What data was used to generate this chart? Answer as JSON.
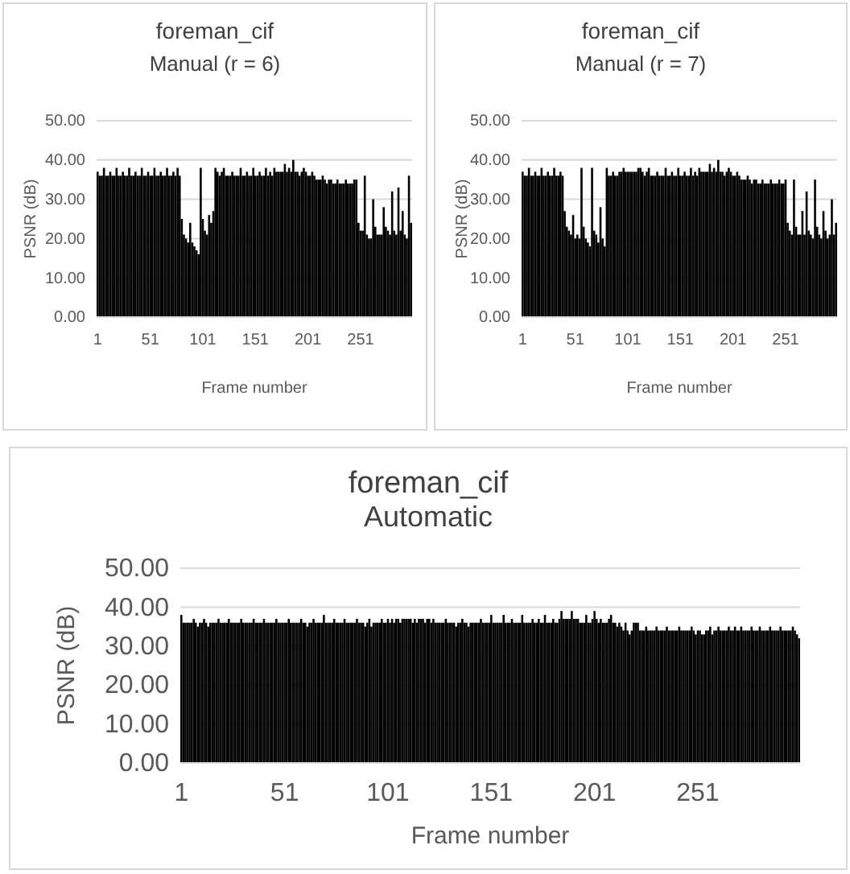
{
  "chart_data": [
    {
      "type": "bar",
      "title": "foreman_cif",
      "subtitle": "Manual (r = 6)",
      "xlabel": "Frame number",
      "ylabel": "PSNR (dB)",
      "color": "#000000",
      "grid": "y",
      "xlim": [
        0,
        300
      ],
      "xticks": [
        1,
        51,
        101,
        151,
        201,
        251
      ],
      "ylim": [
        0,
        50
      ],
      "yticks": [
        {
          "value": 0,
          "label": "0.00"
        },
        {
          "value": 10,
          "label": "10.00"
        },
        {
          "value": 20,
          "label": "20.00"
        },
        {
          "value": 30,
          "label": "30.00"
        },
        {
          "value": 40,
          "label": "40.00"
        },
        {
          "value": 50,
          "label": "50.00"
        }
      ],
      "x": [
        1,
        3,
        5,
        7,
        9,
        11,
        13,
        15,
        17,
        19,
        21,
        23,
        25,
        27,
        29,
        31,
        33,
        35,
        37,
        39,
        41,
        43,
        45,
        47,
        49,
        51,
        53,
        55,
        57,
        59,
        61,
        63,
        65,
        67,
        69,
        71,
        73,
        75,
        77,
        79,
        81,
        83,
        85,
        87,
        89,
        91,
        93,
        95,
        97,
        99,
        101,
        103,
        105,
        107,
        109,
        111,
        113,
        115,
        117,
        119,
        121,
        123,
        125,
        127,
        129,
        131,
        133,
        135,
        137,
        139,
        141,
        143,
        145,
        147,
        149,
        151,
        153,
        155,
        157,
        159,
        161,
        163,
        165,
        167,
        169,
        171,
        173,
        175,
        177,
        179,
        181,
        183,
        185,
        187,
        189,
        191,
        193,
        195,
        197,
        199,
        201,
        203,
        205,
        207,
        209,
        211,
        213,
        215,
        217,
        219,
        221,
        223,
        225,
        227,
        229,
        231,
        233,
        235,
        237,
        239,
        241,
        243,
        245,
        247,
        249,
        251,
        253,
        255,
        257,
        259,
        261,
        263,
        265,
        267,
        269,
        271,
        273,
        275,
        277,
        279,
        281,
        283,
        285,
        287,
        289,
        291,
        293,
        295,
        297,
        299
      ],
      "values": [
        37,
        36,
        36,
        38,
        36,
        36,
        37,
        36,
        36,
        38,
        36,
        36,
        37,
        36,
        36,
        38,
        36,
        36,
        37,
        36,
        36,
        38,
        36,
        36,
        37,
        36,
        36,
        38,
        36,
        36,
        37,
        36,
        36,
        38,
        36,
        36,
        37,
        36,
        38,
        36,
        25,
        21,
        20,
        19,
        24,
        19,
        18,
        17,
        16,
        38,
        25,
        22,
        21,
        26,
        24,
        27,
        38,
        37,
        36,
        37,
        38,
        36,
        36,
        36,
        37,
        36,
        36,
        36,
        38,
        36,
        36,
        37,
        36,
        36,
        38,
        36,
        36,
        37,
        36,
        36,
        38,
        36,
        37,
        36,
        38,
        37,
        37,
        37,
        37,
        39,
        37,
        38,
        37,
        40,
        37,
        37,
        36,
        37,
        38,
        37,
        36,
        36,
        37,
        36,
        35,
        35,
        35,
        36,
        35,
        34,
        35,
        35,
        34,
        34,
        35,
        34,
        34,
        34,
        35,
        34,
        34,
        34,
        35,
        35,
        24,
        22,
        22,
        36,
        21,
        20,
        20,
        30,
        23,
        21,
        21,
        21,
        28,
        23,
        22,
        21,
        32,
        22,
        21,
        33,
        22,
        27,
        21,
        20,
        36,
        24
      ]
    },
    {
      "type": "bar",
      "title": "foreman_cif",
      "subtitle": "Manual (r = 7)",
      "xlabel": "Frame number",
      "ylabel": "PSNR (dB)",
      "color": "#000000",
      "grid": "y",
      "xlim": [
        0,
        300
      ],
      "xticks": [
        1,
        51,
        101,
        151,
        201,
        251
      ],
      "ylim": [
        0,
        50
      ],
      "yticks": [
        {
          "value": 0,
          "label": "0.00"
        },
        {
          "value": 10,
          "label": "10.00"
        },
        {
          "value": 20,
          "label": "20.00"
        },
        {
          "value": 30,
          "label": "30.00"
        },
        {
          "value": 40,
          "label": "40.00"
        },
        {
          "value": 50,
          "label": "50.00"
        }
      ],
      "x": [
        1,
        3,
        5,
        7,
        9,
        11,
        13,
        15,
        17,
        19,
        21,
        23,
        25,
        27,
        29,
        31,
        33,
        35,
        37,
        39,
        41,
        43,
        45,
        47,
        49,
        51,
        53,
        55,
        57,
        59,
        61,
        63,
        65,
        67,
        69,
        71,
        73,
        75,
        77,
        79,
        81,
        83,
        85,
        87,
        89,
        91,
        93,
        95,
        97,
        99,
        101,
        103,
        105,
        107,
        109,
        111,
        113,
        115,
        117,
        119,
        121,
        123,
        125,
        127,
        129,
        131,
        133,
        135,
        137,
        139,
        141,
        143,
        145,
        147,
        149,
        151,
        153,
        155,
        157,
        159,
        161,
        163,
        165,
        167,
        169,
        171,
        173,
        175,
        177,
        179,
        181,
        183,
        185,
        187,
        189,
        191,
        193,
        195,
        197,
        199,
        201,
        203,
        205,
        207,
        209,
        211,
        213,
        215,
        217,
        219,
        221,
        223,
        225,
        227,
        229,
        231,
        233,
        235,
        237,
        239,
        241,
        243,
        245,
        247,
        249,
        251,
        253,
        255,
        257,
        259,
        261,
        263,
        265,
        267,
        269,
        271,
        273,
        275,
        277,
        279,
        281,
        283,
        285,
        287,
        289,
        291,
        293,
        295,
        297,
        299
      ],
      "values": [
        37,
        36,
        36,
        38,
        36,
        36,
        37,
        36,
        36,
        38,
        36,
        36,
        37,
        36,
        36,
        38,
        36,
        36,
        37,
        36,
        27,
        23,
        22,
        21,
        26,
        20,
        21,
        20,
        38,
        23,
        20,
        19,
        18,
        38,
        22,
        21,
        19,
        28,
        20,
        18,
        38,
        36,
        36,
        37,
        36,
        36,
        37,
        37,
        38,
        37,
        37,
        37,
        37,
        37,
        37,
        38,
        38,
        37,
        36,
        37,
        38,
        36,
        36,
        36,
        37,
        36,
        36,
        36,
        38,
        36,
        36,
        37,
        36,
        36,
        38,
        36,
        36,
        37,
        36,
        36,
        38,
        36,
        37,
        36,
        38,
        37,
        37,
        37,
        37,
        39,
        37,
        38,
        37,
        40,
        37,
        37,
        36,
        37,
        38,
        37,
        36,
        36,
        37,
        36,
        35,
        35,
        35,
        36,
        35,
        34,
        35,
        35,
        34,
        34,
        35,
        34,
        34,
        34,
        35,
        34,
        34,
        34,
        35,
        34,
        34,
        35,
        24,
        22,
        21,
        35,
        23,
        21,
        21,
        27,
        21,
        32,
        22,
        21,
        20,
        35,
        23,
        21,
        20,
        27,
        22,
        20,
        21,
        30,
        21,
        24
      ]
    },
    {
      "type": "bar",
      "title": "foreman_cif",
      "subtitle": "Automatic",
      "xlabel": "Frame number",
      "ylabel": "PSNR (dB)",
      "color": "#000000",
      "grid": "y",
      "xlim": [
        0.5,
        300.5
      ],
      "xticks": [
        1,
        51,
        101,
        151,
        201,
        251
      ],
      "ylim": [
        0,
        50
      ],
      "yticks": [
        {
          "value": 0,
          "label": "0.00"
        },
        {
          "value": 10,
          "label": "10.00"
        },
        {
          "value": 20,
          "label": "20.00"
        },
        {
          "value": 30,
          "label": "30.00"
        },
        {
          "value": 40,
          "label": "40.00"
        },
        {
          "value": 50,
          "label": "50.00"
        }
      ],
      "x": [
        1,
        2,
        3,
        4,
        5,
        6,
        7,
        8,
        9,
        10,
        11,
        12,
        13,
        14,
        15,
        16,
        17,
        18,
        19,
        20,
        21,
        22,
        23,
        24,
        25,
        26,
        27,
        28,
        29,
        30,
        31,
        32,
        33,
        34,
        35,
        36,
        37,
        38,
        39,
        40,
        41,
        42,
        43,
        44,
        45,
        46,
        47,
        48,
        49,
        50,
        51,
        52,
        53,
        54,
        55,
        56,
        57,
        58,
        59,
        60,
        61,
        62,
        63,
        64,
        65,
        66,
        67,
        68,
        69,
        70,
        71,
        72,
        73,
        74,
        75,
        76,
        77,
        78,
        79,
        80,
        81,
        82,
        83,
        84,
        85,
        86,
        87,
        88,
        89,
        90,
        91,
        92,
        93,
        94,
        95,
        96,
        97,
        98,
        99,
        100,
        101,
        102,
        103,
        104,
        105,
        106,
        107,
        108,
        109,
        110,
        111,
        112,
        113,
        114,
        115,
        116,
        117,
        118,
        119,
        120,
        121,
        122,
        123,
        124,
        125,
        126,
        127,
        128,
        129,
        130,
        131,
        132,
        133,
        134,
        135,
        136,
        137,
        138,
        139,
        140,
        141,
        142,
        143,
        144,
        145,
        146,
        147,
        148,
        149,
        150,
        151,
        152,
        153,
        154,
        155,
        156,
        157,
        158,
        159,
        160,
        161,
        162,
        163,
        164,
        165,
        166,
        167,
        168,
        169,
        170,
        171,
        172,
        173,
        174,
        175,
        176,
        177,
        178,
        179,
        180,
        181,
        182,
        183,
        184,
        185,
        186,
        187,
        188,
        189,
        190,
        191,
        192,
        193,
        194,
        195,
        196,
        197,
        198,
        199,
        200,
        201,
        202,
        203,
        204,
        205,
        206,
        207,
        208,
        209,
        210,
        211,
        212,
        213,
        214,
        215,
        216,
        217,
        218,
        219,
        220,
        221,
        222,
        223,
        224,
        225,
        226,
        227,
        228,
        229,
        230,
        231,
        232,
        233,
        234,
        235,
        236,
        237,
        238,
        239,
        240,
        241,
        242,
        243,
        244,
        245,
        246,
        247,
        248,
        249,
        250,
        251,
        252,
        253,
        254,
        255,
        256,
        257,
        258,
        259,
        260,
        261,
        262,
        263,
        264,
        265,
        266,
        267,
        268,
        269,
        270,
        271,
        272,
        273,
        274,
        275,
        276,
        277,
        278,
        279,
        280,
        281,
        282,
        283,
        284,
        285,
        286,
        287,
        288,
        289,
        290,
        291,
        292,
        293,
        294,
        295,
        296,
        297,
        298,
        299,
        300
      ],
      "values": [
        38,
        36,
        36,
        36,
        36,
        36,
        37,
        36,
        35,
        36,
        36,
        37,
        36,
        35,
        36,
        36,
        36,
        36,
        37,
        36,
        36,
        36,
        36,
        37,
        36,
        36,
        36,
        36,
        36,
        37,
        36,
        36,
        36,
        36,
        36,
        37,
        36,
        36,
        36,
        36,
        37,
        36,
        36,
        36,
        36,
        36,
        37,
        36,
        36,
        36,
        36,
        36,
        37,
        36,
        36,
        36,
        36,
        36,
        37,
        36,
        36,
        35,
        36,
        36,
        37,
        36,
        36,
        36,
        36,
        38,
        36,
        36,
        36,
        36,
        37,
        36,
        36,
        36,
        36,
        37,
        36,
        36,
        36,
        36,
        36,
        37,
        36,
        36,
        36,
        35,
        36,
        37,
        35,
        36,
        36,
        36,
        36,
        37,
        36,
        36,
        37,
        36,
        37,
        36,
        37,
        37,
        36,
        37,
        37,
        37,
        37,
        37,
        36,
        37,
        36,
        37,
        37,
        37,
        36,
        37,
        37,
        36,
        37,
        36,
        36,
        36,
        36,
        36,
        37,
        36,
        36,
        36,
        36,
        35,
        36,
        36,
        37,
        36,
        36,
        35,
        36,
        36,
        36,
        36,
        36,
        37,
        36,
        36,
        36,
        36,
        38,
        36,
        36,
        36,
        36,
        36,
        38,
        36,
        36,
        36,
        37,
        36,
        36,
        36,
        36,
        38,
        36,
        36,
        36,
        36,
        37,
        36,
        36,
        37,
        36,
        36,
        38,
        36,
        36,
        36,
        37,
        36,
        36,
        37,
        39,
        37,
        37,
        37,
        37,
        39,
        37,
        37,
        37,
        36,
        36,
        36,
        38,
        36,
        36,
        37,
        39,
        37,
        36,
        37,
        36,
        36,
        36,
        37,
        38,
        36,
        36,
        35,
        36,
        35,
        34,
        36,
        34,
        33,
        34,
        36,
        36,
        36,
        34,
        34,
        34,
        35,
        34,
        34,
        34,
        34,
        35,
        34,
        34,
        34,
        34,
        35,
        34,
        34,
        34,
        34,
        34,
        35,
        34,
        34,
        34,
        34,
        34,
        35,
        34,
        33,
        34,
        34,
        33,
        33,
        34,
        34,
        35,
        33,
        34,
        34,
        35,
        34,
        34,
        34,
        34,
        35,
        34,
        34,
        35,
        34,
        34,
        35,
        34,
        34,
        34,
        34,
        35,
        34,
        34,
        34,
        35,
        34,
        34,
        34,
        34,
        35,
        34,
        34,
        34,
        34,
        35,
        34,
        34,
        34,
        34,
        34,
        35,
        34,
        33,
        32
      ]
    }
  ]
}
